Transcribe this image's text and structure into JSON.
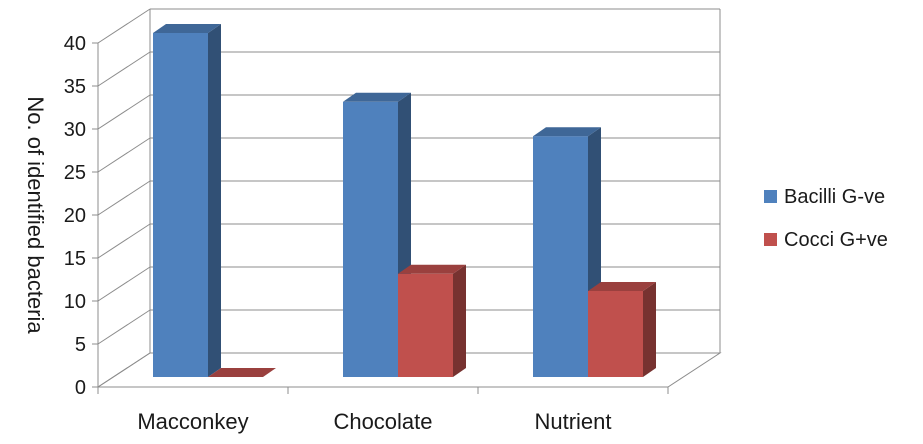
{
  "chart_data": {
    "type": "bar",
    "title": "",
    "xlabel": "",
    "ylabel": "No. of identified bacteria",
    "categories": [
      "Macconkey",
      "Chocolate",
      "Nutrient"
    ],
    "series": [
      {
        "name": "Bacilli G-ve",
        "values": [
          40,
          32,
          28
        ],
        "color": "#4f81bd"
      },
      {
        "name": "Cocci G+ve",
        "values": [
          0,
          12,
          10
        ],
        "color": "#c0504d"
      }
    ],
    "ylim": [
      0,
      40
    ],
    "yticks": [
      0,
      5,
      10,
      15,
      20,
      25,
      30,
      35,
      40
    ],
    "grid": true,
    "style": "3d-clustered-column",
    "legend_position": "right"
  }
}
